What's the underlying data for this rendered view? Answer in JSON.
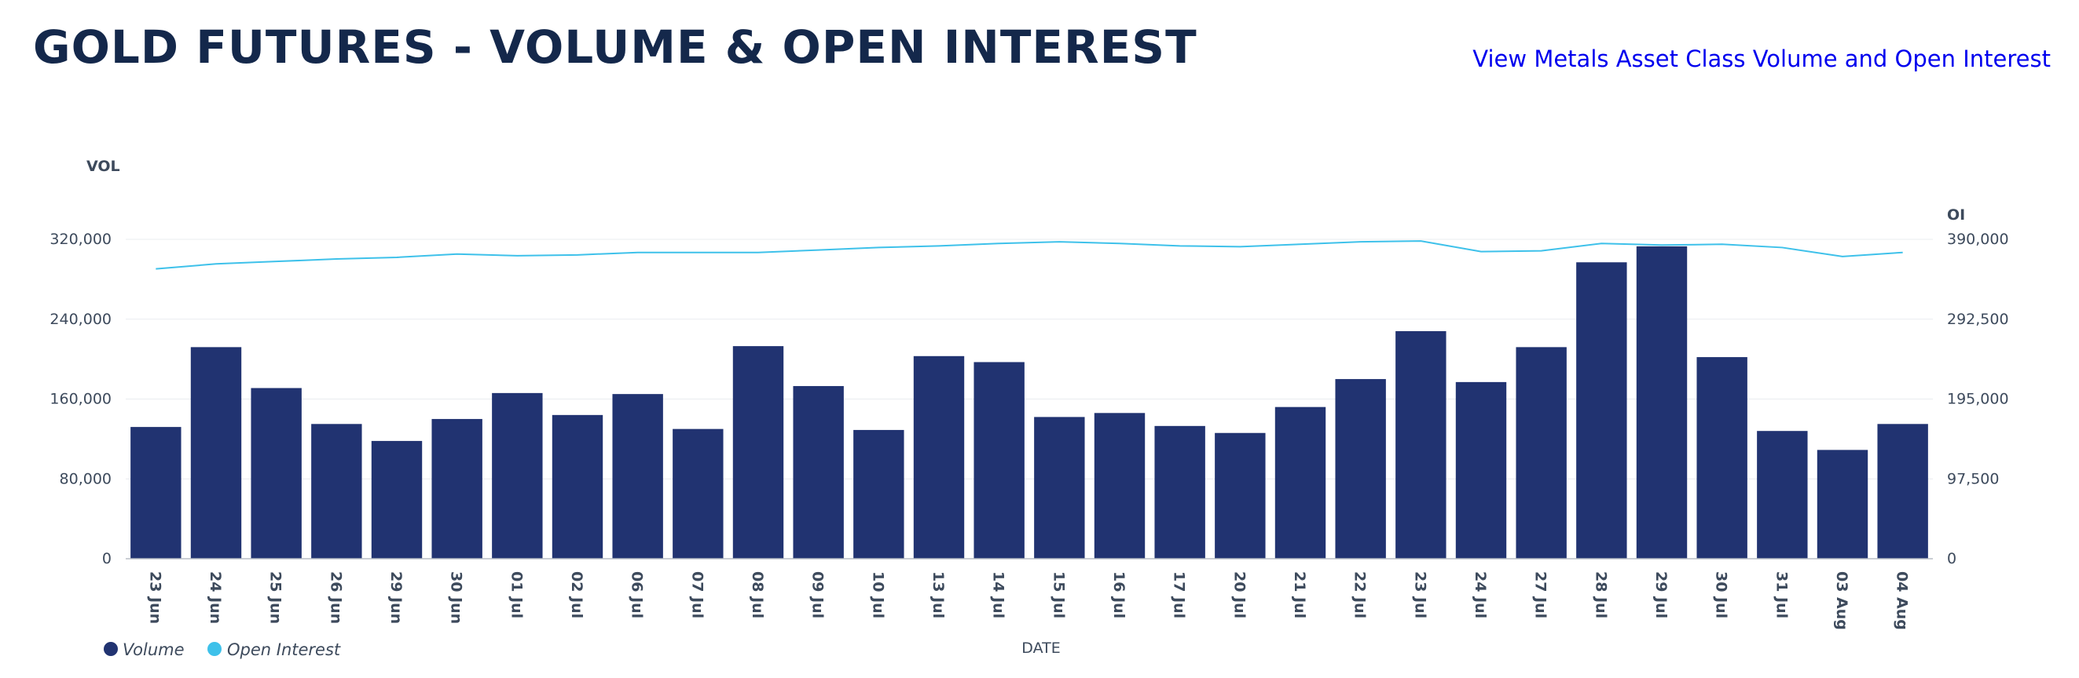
{
  "header": {
    "title": "GOLD FUTURES - VOLUME & OPEN INTEREST",
    "link_label": "View Metals Asset Class Volume and Open Interest"
  },
  "colors": {
    "volume": "#213371",
    "open_interest": "#3ec1ea",
    "grid": "#e9ecef",
    "axis": "#b8bec6"
  },
  "chart_data": {
    "type": "bar",
    "categories": [
      "23 Jun",
      "24 Jun",
      "25 Jun",
      "26 Jun",
      "29 Jun",
      "30 Jun",
      "01 Jul",
      "02 Jul",
      "06 Jul",
      "07 Jul",
      "08 Jul",
      "09 Jul",
      "10 Jul",
      "13 Jul",
      "14 Jul",
      "15 Jul",
      "16 Jul",
      "17 Jul",
      "20 Jul",
      "21 Jul",
      "22 Jul",
      "23 Jul",
      "24 Jul",
      "27 Jul",
      "28 Jul",
      "29 Jul",
      "30 Jul",
      "31 Jul",
      "03 Aug",
      "04 Aug"
    ],
    "series": [
      {
        "name": "Volume",
        "axis": "left",
        "kind": "bar",
        "values": [
          132000,
          212000,
          171000,
          135000,
          118000,
          140000,
          166000,
          144000,
          165000,
          130000,
          213000,
          173000,
          129000,
          203000,
          197000,
          142000,
          146000,
          133000,
          126000,
          152000,
          180000,
          228000,
          177000,
          212000,
          297000,
          313000,
          202000,
          128000,
          109000,
          135000
        ]
      },
      {
        "name": "Open Interest",
        "axis": "right",
        "kind": "line",
        "values": [
          354000,
          360000,
          363000,
          366000,
          368000,
          372000,
          370000,
          371000,
          374000,
          374000,
          374000,
          377000,
          380000,
          382000,
          385000,
          387000,
          385000,
          382000,
          381000,
          384000,
          387000,
          388000,
          375000,
          376000,
          385000,
          383000,
          384000,
          380000,
          369000,
          374000
        ]
      }
    ],
    "xlabel": "DATE",
    "ylabel": "VOL",
    "y2label": "OI",
    "ylim": [
      0,
      320000
    ],
    "y2lim": [
      0,
      390000
    ],
    "yticks": [
      "0",
      "80,000",
      "160,000",
      "240,000",
      "320,000"
    ],
    "y2ticks": [
      "0",
      "97,500",
      "195,000",
      "292,500",
      "390,000"
    ],
    "grid": true,
    "legend": {
      "position": "bottom-left",
      "entries": [
        "Volume",
        "Open Interest"
      ]
    }
  }
}
